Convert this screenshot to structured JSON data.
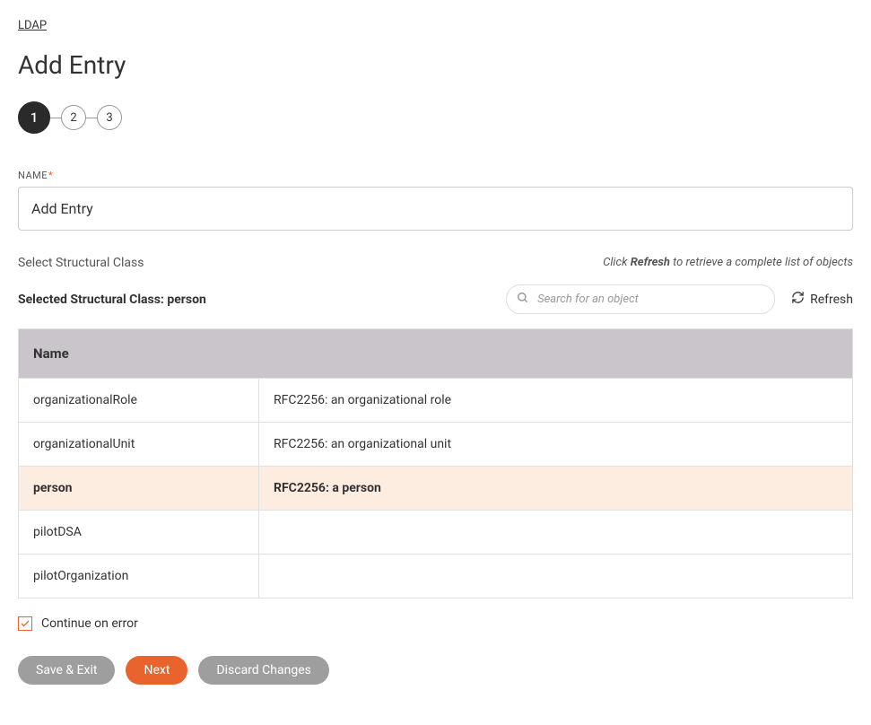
{
  "breadcrumb": {
    "label": "LDAP"
  },
  "page": {
    "title": "Add Entry"
  },
  "stepper": {
    "steps": [
      "1",
      "2",
      "3"
    ],
    "active_index": 0
  },
  "name_field": {
    "label": "NAME",
    "required": true,
    "value": "Add Entry"
  },
  "structural": {
    "section_label": "Select Structural Class",
    "hint_prefix": "Click ",
    "hint_bold": "Refresh",
    "hint_suffix": " to retrieve a complete list of objects",
    "selected_prefix": "Selected Structural Class: ",
    "selected_value": "person"
  },
  "search": {
    "placeholder": "Search for an object"
  },
  "refresh": {
    "label": "Refresh"
  },
  "table": {
    "header": "Name",
    "rows": [
      {
        "name": "organizationalRole",
        "desc": "RFC2256: an organizational role",
        "selected": false
      },
      {
        "name": "organizationalUnit",
        "desc": "RFC2256: an organizational unit",
        "selected": false
      },
      {
        "name": "person",
        "desc": "RFC2256: a person",
        "selected": true
      },
      {
        "name": "pilotDSA",
        "desc": "",
        "selected": false
      },
      {
        "name": "pilotOrganization",
        "desc": "",
        "selected": false
      }
    ]
  },
  "continue_checkbox": {
    "label": "Continue on error",
    "checked": true
  },
  "buttons": {
    "save_exit": "Save & Exit",
    "next": "Next",
    "discard": "Discard Changes"
  },
  "colors": {
    "accent": "#e8642c",
    "step_active": "#2a2a2a",
    "table_header_bg": "#c9c5cb",
    "row_selected_bg": "#fdece0",
    "btn_gray": "#9e9e9e"
  }
}
